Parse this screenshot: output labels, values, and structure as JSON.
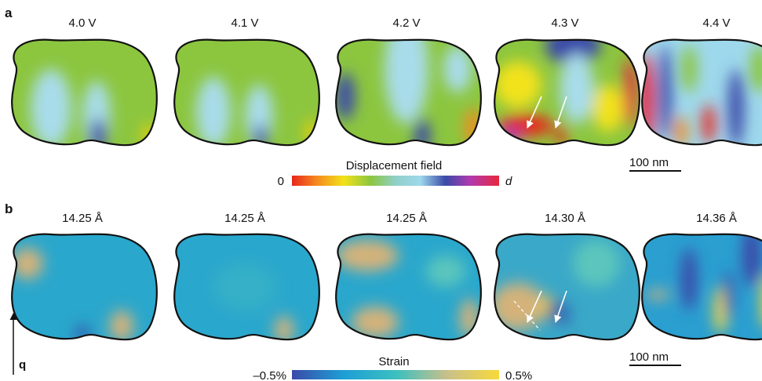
{
  "panels": [
    {
      "label": "a",
      "titles": [
        "4.0 V",
        "4.1 V",
        "4.2 V",
        "4.3 V",
        "4.4 V"
      ],
      "colorbar": {
        "title": "Displacement field",
        "min": "0",
        "max": "d"
      },
      "scale_bar": "100 nm"
    },
    {
      "label": "b",
      "titles": [
        "14.25 Å",
        "14.25 Å",
        "14.25 Å",
        "14.30 Å",
        "14.36 Å"
      ],
      "colorbar": {
        "title": "Strain",
        "min": "–0.5%",
        "max": "0.5%"
      },
      "scale_bar": "100 nm"
    }
  ],
  "axis_label": "q"
}
